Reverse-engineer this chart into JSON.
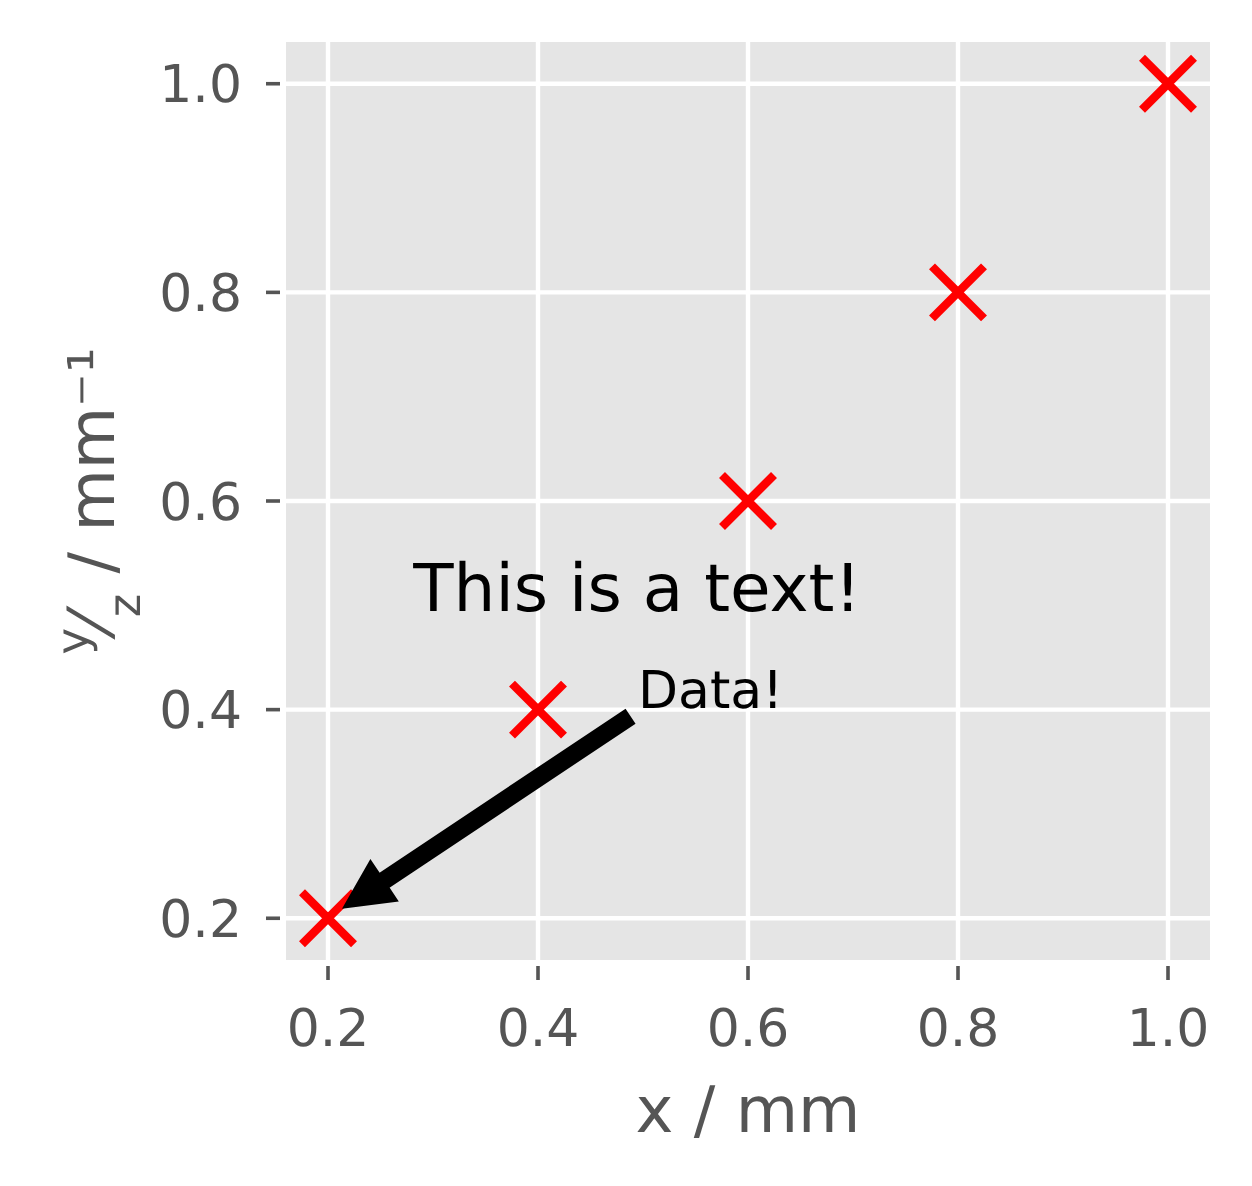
{
  "chart_data": {
    "type": "scatter",
    "x": [
      0.2,
      0.4,
      0.6,
      0.8,
      1.0
    ],
    "values": [
      0.2,
      0.4,
      0.6,
      0.8,
      1.0
    ],
    "color": "#ff0000",
    "marker": "cross",
    "xlabel": "x / mm",
    "ylabel": "$^{y}$⁄$_{z}$ / mm⁻¹",
    "xlim": [
      0.16,
      1.04
    ],
    "ylim": [
      0.16,
      1.04
    ],
    "xticks": [
      0.2,
      0.4,
      0.6,
      0.8,
      {
        "value": 1.0,
        "label": "1.0"
      }
    ],
    "yticks": [
      0.2,
      0.4,
      0.6,
      0.8,
      {
        "value": 1.0,
        "label": "1.0"
      }
    ],
    "grid": true,
    "annotations": [
      "This is a text!",
      "Data!"
    ]
  }
}
